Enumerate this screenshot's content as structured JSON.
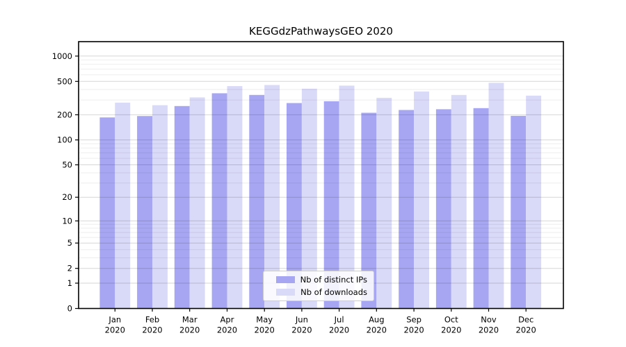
{
  "chart_data": {
    "type": "bar",
    "title": "KEGGdzPathwaysGEO 2020",
    "y_scale": "log1p",
    "grid": true,
    "legend_position": "lower center",
    "categories": [
      "Jan",
      "Feb",
      "Mar",
      "Apr",
      "May",
      "Jun",
      "Jul",
      "Aug",
      "Sep",
      "Oct",
      "Nov",
      "Dec"
    ],
    "year_label": "2020",
    "series": [
      {
        "name": "Nb of distinct IPs",
        "color": "#a6a6f2",
        "values": [
          186,
          193,
          254,
          361,
          345,
          276,
          290,
          211,
          228,
          233,
          240,
          194
        ]
      },
      {
        "name": "Nb of downloads",
        "color": "#d9d9f8",
        "values": [
          279,
          260,
          322,
          439,
          453,
          409,
          445,
          319,
          379,
          345,
          480,
          338
        ]
      }
    ],
    "y_ticks": [
      0,
      1,
      2,
      5,
      10,
      20,
      50,
      100,
      200,
      500,
      1000
    ],
    "y_minor_gridlines": [
      3,
      4,
      6,
      7,
      8,
      9,
      30,
      40,
      60,
      70,
      80,
      90,
      300,
      400,
      600,
      700,
      800,
      900
    ],
    "ylim": [
      0,
      1500
    ]
  }
}
